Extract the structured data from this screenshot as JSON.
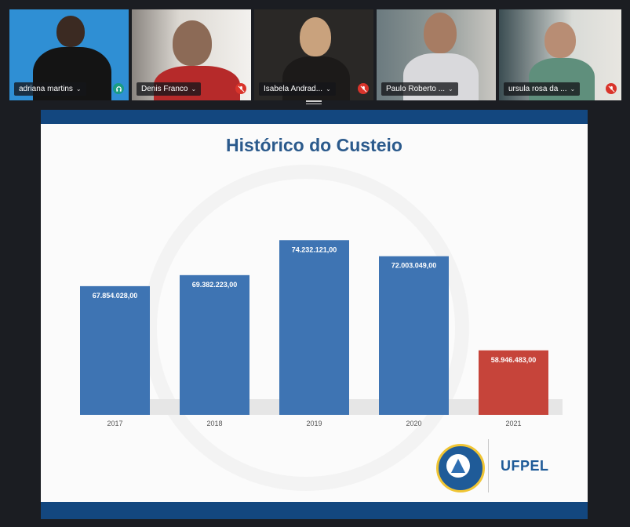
{
  "participants": [
    {
      "name": "adriana martins",
      "status": "listening"
    },
    {
      "name": "Denis Franco",
      "status": "muted"
    },
    {
      "name": "Isabela Andrad...",
      "status": "muted"
    },
    {
      "name": "Paulo Roberto ...",
      "status": "none",
      "active": true
    },
    {
      "name": "ursula rosa da ...",
      "status": "muted"
    }
  ],
  "slide": {
    "title": "Histórico do Custeio",
    "logo_text": "UFPEL"
  },
  "chart_data": {
    "type": "bar",
    "title": "Histórico do Custeio",
    "categories": [
      "2017",
      "2018",
      "2019",
      "2020",
      "2021"
    ],
    "values": [
      67854028.0,
      69382223.0,
      74232121.0,
      72003049.0,
      58946483.0
    ],
    "labels": [
      "67.854.028,00",
      "69.382.223,00",
      "74.232.121,00",
      "72.003.049,00",
      "58.946.483,00"
    ],
    "colors": [
      "#3e74b3",
      "#3e74b3",
      "#3e74b3",
      "#3e74b3",
      "#c6443a"
    ],
    "ylim": [
      50000000,
      76000000
    ],
    "grid": false,
    "legend": "none"
  },
  "colors": {
    "accent": "#4d8fd6",
    "slide_header": "#13477f",
    "bar": "#3e74b3",
    "bar_highlight": "#c6443a",
    "title": "#2b5a8c"
  }
}
